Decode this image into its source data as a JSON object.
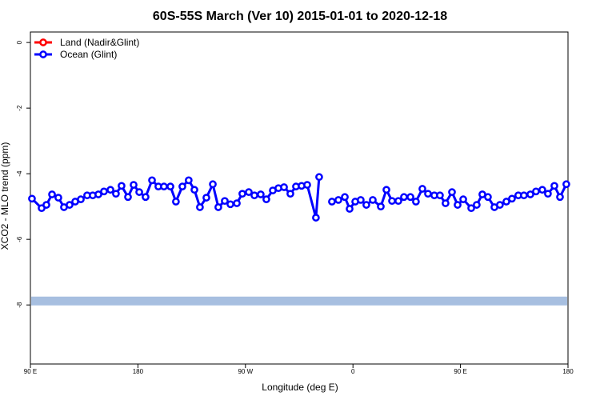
{
  "chart_data": {
    "type": "line",
    "title": "60S-55S March (Ver 10)   2015-01-01 to 2020-12-18",
    "x_label": "Longitude (deg E)",
    "y_label": "XCO2 - MLO trend (ppm)",
    "xlim": [
      90,
      540
    ],
    "ylim": [
      -9.8,
      0.32
    ],
    "xticks": [
      {
        "value": 90,
        "label": "90 E"
      },
      180,
      {
        "value": 270,
        "label": "90 W"
      },
      {
        "value": 360,
        "label": "0"
      },
      {
        "value": 450,
        "label": "90 E"
      },
      {
        "value": 540,
        "label": "180"
      }
    ],
    "yticks": [
      0,
      -2,
      -4,
      -6,
      -8
    ],
    "legend": "top-left",
    "reference_band": {
      "value": -7.88,
      "color": "#a7bfe0"
    },
    "series": [
      {
        "name": "Land (Nadir&Glint)",
        "color": "#ff0000",
        "x": [],
        "values": []
      },
      {
        "name": "Ocean (Glint)",
        "color": "#0000ff",
        "x": [
          91.3,
          99.4,
          103.4,
          108.1,
          113.4,
          118.1,
          122.8,
          127.5,
          132.2,
          137.5,
          142.2,
          146.9,
          151.6,
          157.0,
          161.6,
          166.3,
          171.7,
          176.4,
          181.1,
          186.4,
          191.8,
          197.1,
          201.8,
          207.2,
          211.8,
          217.2,
          222.5,
          227.3,
          231.9,
          237.3,
          242.7,
          247.3,
          252.7,
          257.4,
          262.8,
          267.4,
          272.8,
          277.5,
          282.8,
          287.5,
          292.9,
          297.6,
          302.3,
          307.6,
          312.3,
          317.0,
          321.7,
          329.0,
          331.7,
          337.0,
          342.4,
          347.8,
          353.2,
          357.2,
          361.9,
          366.5,
          371.2,
          376.6,
          383.3,
          388.0,
          392.7,
          398.0,
          402.7,
          408.1,
          412.7,
          418.1,
          422.8,
          428.1,
          432.8,
          437.5,
          442.9,
          447.6,
          452.3,
          459.0,
          463.6,
          468.3,
          473.0,
          478.4,
          483.0,
          488.4,
          493.1,
          498.4,
          503.1,
          508.5,
          513.2,
          518.5,
          523.2,
          528.6,
          533.3,
          538.6
        ],
        "values": [
          -4.76,
          -5.05,
          -4.95,
          -4.63,
          -4.73,
          -5.02,
          -4.95,
          -4.85,
          -4.78,
          -4.66,
          -4.66,
          -4.63,
          -4.54,
          -4.49,
          -4.61,
          -4.37,
          -4.71,
          -4.34,
          -4.56,
          -4.71,
          -4.2,
          -4.39,
          -4.39,
          -4.39,
          -4.85,
          -4.39,
          -4.2,
          -4.49,
          -5.02,
          -4.73,
          -4.32,
          -5.02,
          -4.83,
          -4.93,
          -4.9,
          -4.61,
          -4.56,
          -4.66,
          -4.63,
          -4.78,
          -4.51,
          -4.44,
          -4.41,
          -4.61,
          -4.39,
          -4.37,
          -4.34,
          -5.34,
          -4.1,
          null,
          -4.85,
          -4.8,
          -4.71,
          -5.07,
          -4.85,
          -4.8,
          -4.95,
          -4.8,
          -5.0,
          -4.49,
          -4.83,
          -4.83,
          -4.71,
          -4.71,
          -4.85,
          -4.46,
          -4.61,
          -4.66,
          -4.66,
          -4.9,
          -4.56,
          -4.95,
          -4.78,
          -5.05,
          -4.95,
          -4.63,
          -4.71,
          -5.02,
          -4.95,
          -4.85,
          -4.76,
          -4.66,
          -4.66,
          -4.63,
          -4.54,
          -4.49,
          -4.61,
          -4.37,
          -4.71,
          -4.32
        ]
      }
    ]
  }
}
